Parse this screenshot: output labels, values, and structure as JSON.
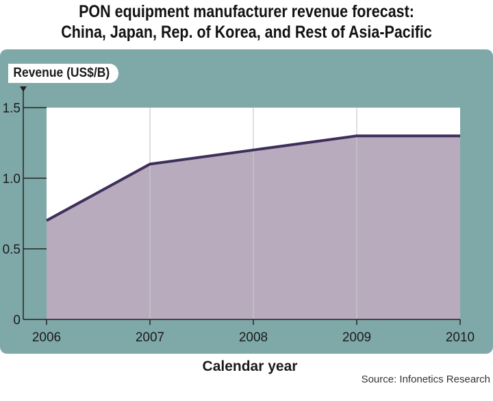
{
  "chart_data": {
    "type": "area",
    "title": "PON equipment manufacturer revenue forecast:",
    "subtitle": "China, Japan, Rep. of Korea, and Rest of Asia-Pacific",
    "ylabel": "Revenue (US$/B)",
    "xlabel": "Calendar year",
    "source": "Source: Infonetics Research",
    "x": [
      "2006",
      "2007",
      "2008",
      "2009",
      "2010"
    ],
    "series": [
      {
        "values": [
          0.7,
          1.1,
          1.2,
          1.3,
          1.3
        ]
      }
    ],
    "ylim": [
      0,
      1.5
    ],
    "yticks": [
      {
        "value": 0,
        "label": "0"
      },
      {
        "value": 0.5,
        "label": "0.5"
      },
      {
        "value": 1.0,
        "label": "1.0"
      },
      {
        "value": 1.5,
        "label": "1.5"
      }
    ],
    "grid": "vertical",
    "colors": {
      "panel": "#7fa9a8",
      "plot_bg": "#ffffff",
      "area_fill": "#b8abbd",
      "line": "#3d2f5a",
      "grid": "#c9c9c9"
    }
  }
}
